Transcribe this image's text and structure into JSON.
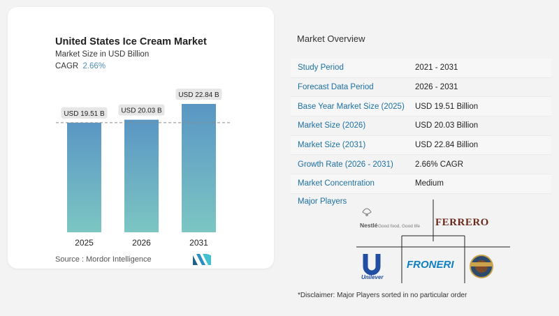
{
  "card": {
    "title": "United States Ice Cream Market",
    "subtitle": "Market Size in USD Billion",
    "cagr_label": "CAGR",
    "cagr_value": "2.66%",
    "source": "Source :  Mordor Intelligence"
  },
  "chart_data": {
    "type": "bar",
    "categories": [
      "2025",
      "2026",
      "2031"
    ],
    "values": [
      19.51,
      20.03,
      22.84
    ],
    "data_labels": [
      "USD 19.51 B",
      "USD 20.03 B",
      "USD 22.84 B"
    ],
    "reference_line": 19.51,
    "colors": {
      "bar_top": "#5a96c4",
      "bar_bottom": "#7cc6c3",
      "label_bg": "#e6e6e6"
    },
    "grid": false
  },
  "overview": {
    "title": "Market Overview",
    "rows": [
      {
        "label": "Study Period",
        "value": "2021 - 2031"
      },
      {
        "label": "Forecast Data Period",
        "value": "2026 - 2031"
      },
      {
        "label": "Base Year Market Size (2025)",
        "value": "USD 19.51 Billion"
      },
      {
        "label": "Market Size (2026)",
        "value": "USD 20.03 Billion"
      },
      {
        "label": "Market Size (2031)",
        "value": "USD 22.84 Billion"
      },
      {
        "label": "Growth Rate (2026 - 2031)",
        "value": "2.66% CAGR"
      },
      {
        "label": "Market Concentration",
        "value": "Medium"
      }
    ]
  },
  "players": {
    "title": "Major Players",
    "logos": {
      "nestle": "Nestlé",
      "nestle_tagline": "Good food, Good life",
      "ferrero": "FERRERO",
      "unilever": "Unilever",
      "froneri": "FRONERI"
    },
    "disclaimer": "*Disclaimer: Major Players sorted in no particular order"
  },
  "colors": {
    "accent": "#1d6fa3",
    "cagr": "#4f8fb8"
  }
}
